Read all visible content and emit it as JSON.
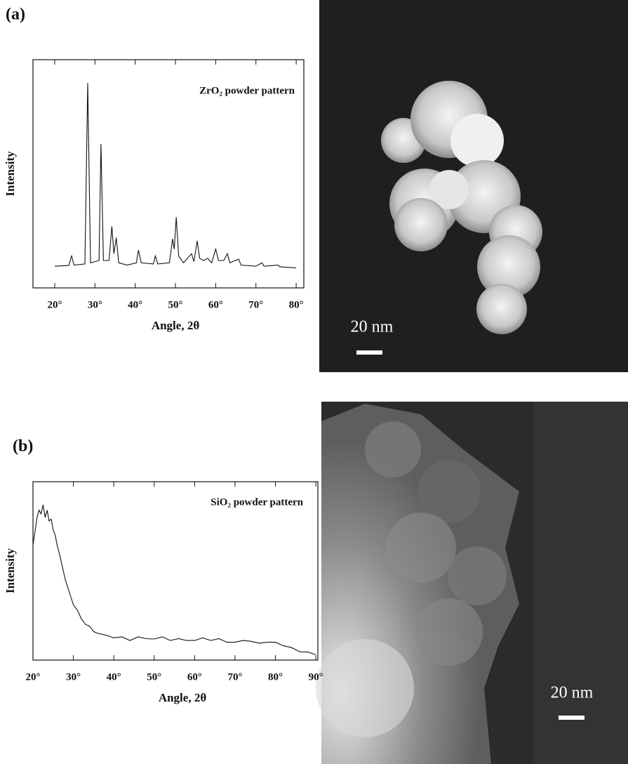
{
  "chart_data": [
    {
      "type": "line",
      "panel_label": "(a)",
      "title": "ZrO₂ powder pattern",
      "xlabel": "Angle, 2θ",
      "ylabel": "Intensity",
      "xlim": [
        14.6,
        81.9
      ],
      "ylim": [
        0,
        100
      ],
      "xticks": [
        {
          "value": 20,
          "label": "20°"
        },
        {
          "value": 30,
          "label": "30°"
        },
        {
          "value": 40,
          "label": "40°"
        },
        {
          "value": 50,
          "label": "50°"
        },
        {
          "value": 60,
          "label": "60°"
        },
        {
          "value": 70,
          "label": "70°"
        },
        {
          "value": 80,
          "label": "80°"
        }
      ],
      "x": [
        20,
        23.5,
        24.2,
        24.8,
        27.5,
        28.2,
        28.9,
        30,
        31,
        31.5,
        32.1,
        33.5,
        34.2,
        34.7,
        35.3,
        35.9,
        38,
        40.3,
        40.8,
        41.5,
        44.5,
        45,
        45.6,
        48.5,
        49.3,
        49.7,
        50.2,
        50.8,
        52,
        54,
        54.6,
        55.4,
        56,
        57,
        58,
        59,
        60,
        60.7,
        62,
        62.9,
        63.5,
        65.7,
        66.3,
        70,
        71.5,
        72,
        75.5,
        76,
        80
      ],
      "series": [
        {
          "color": "#111111",
          "values": [
            9.5,
            9.8,
            14,
            10,
            10.5,
            89.8,
            11,
            11.5,
            12,
            63,
            12,
            12,
            27,
            15,
            22,
            11,
            10,
            11,
            16.6,
            11,
            10.5,
            14,
            10.5,
            11,
            21.5,
            17,
            31,
            14,
            11,
            15,
            11.5,
            20.6,
            13,
            12,
            13,
            11,
            17,
            12,
            12,
            15,
            11,
            12.6,
            10,
            9.5,
            11,
            9.5,
            10,
            9.2,
            8.8
          ]
        }
      ]
    },
    {
      "type": "line",
      "panel_label": "(b)",
      "title": "SiO₂ powder pattern",
      "xlabel": "Angle, 2θ",
      "ylabel": "Intensity",
      "xlim": [
        20,
        90.5
      ],
      "ylim": [
        0,
        100
      ],
      "xticks": [
        {
          "value": 20,
          "label": "20°"
        },
        {
          "value": 30,
          "label": "30°"
        },
        {
          "value": 40,
          "label": "40°"
        },
        {
          "value": 50,
          "label": "50°"
        },
        {
          "value": 60,
          "label": "60°"
        },
        {
          "value": 70,
          "label": "70°"
        },
        {
          "value": 80,
          "label": "80°"
        },
        {
          "value": 90,
          "label": "90°"
        }
      ],
      "x": [
        20,
        20.5,
        21,
        21.5,
        22,
        22.5,
        23,
        23.5,
        24,
        24.5,
        25,
        25.5,
        26,
        26.5,
        27,
        27.5,
        28,
        29,
        30,
        31,
        32,
        33,
        34,
        35,
        36,
        38,
        40,
        42,
        44,
        46,
        48,
        50,
        52,
        54,
        56,
        58,
        60,
        62,
        64,
        66,
        68,
        70,
        72,
        74,
        76,
        78,
        80,
        82,
        84,
        86,
        88,
        90
      ],
      "series": [
        {
          "color": "#111111",
          "values": [
            64.7,
            72,
            80,
            84,
            82,
            87,
            80,
            84,
            78,
            79,
            73,
            70,
            64,
            60,
            55,
            50,
            45,
            38,
            31,
            28,
            23,
            20,
            19,
            16,
            15,
            14,
            12.5,
            13,
            11,
            13,
            12,
            11.8,
            13,
            11,
            12,
            11,
            11,
            12.5,
            11,
            12,
            10,
            10,
            11,
            10.5,
            9.5,
            10,
            10,
            8,
            7,
            4.7,
            4.5,
            3.1
          ]
        }
      ]
    }
  ],
  "images": [
    {
      "scale_label": "20 nm"
    },
    {
      "scale_label": "20 nm"
    }
  ]
}
